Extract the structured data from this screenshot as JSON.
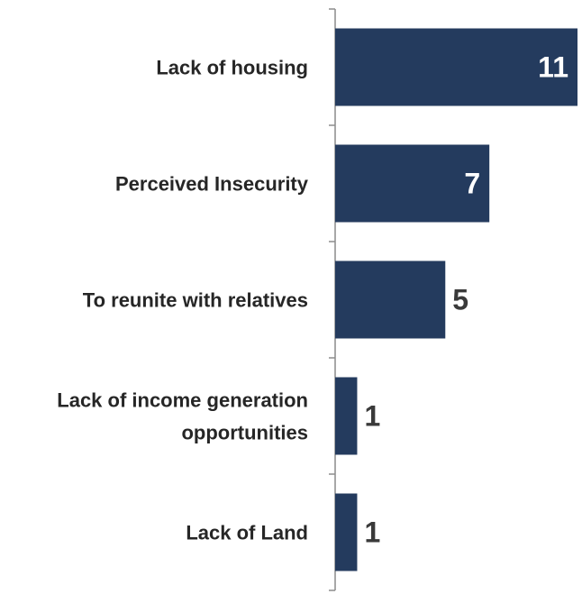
{
  "chart_data": {
    "type": "bar",
    "orientation": "horizontal",
    "categories": [
      "Lack of housing",
      "Perceived Insecurity",
      "To reunite with relatives",
      "Lack of income generation opportunities",
      "Lack of Land"
    ],
    "category_lines": [
      [
        "Lack of housing"
      ],
      [
        "Perceived Insecurity"
      ],
      [
        "To reunite with relatives"
      ],
      [
        "Lack of income generation",
        "opportunities"
      ],
      [
        "Lack of Land"
      ]
    ],
    "values": [
      11,
      7,
      5,
      1,
      1
    ],
    "xlim": [
      0,
      11
    ],
    "grid": false,
    "legend": "none"
  },
  "colors": {
    "bar": "#243b5e",
    "axis": "#8c8c8c",
    "label_inside": "#ffffff",
    "label_outside": "#3a3a3a"
  }
}
